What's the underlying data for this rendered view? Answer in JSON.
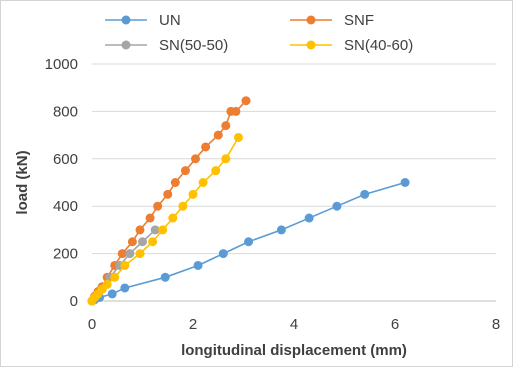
{
  "chart_data": {
    "type": "scatter",
    "xlabel": "longitudinal displacement (mm)",
    "ylabel": "load (kN)",
    "xlim": [
      0,
      8
    ],
    "ylim": [
      0,
      1000
    ],
    "x_ticks": [
      0,
      2,
      4,
      6,
      8
    ],
    "y_ticks": [
      0,
      200,
      400,
      600,
      800,
      1000
    ],
    "grid": "horizontal",
    "legend": "top",
    "series": [
      {
        "name": "UN",
        "color": "#5B9BD5",
        "x": [
          0,
          0.05,
          0.15,
          0.4,
          0.65,
          1.45,
          2.1,
          2.6,
          3.1,
          3.75,
          4.3,
          4.85,
          5.4,
          6.2
        ],
        "y": [
          0,
          5,
          15,
          30,
          55,
          100,
          150,
          200,
          250,
          300,
          350,
          400,
          450,
          500
        ]
      },
      {
        "name": "SNF",
        "color": "#ED7D31",
        "x": [
          0,
          0.05,
          0.12,
          0.2,
          0.3,
          0.45,
          0.6,
          0.8,
          0.95,
          1.15,
          1.3,
          1.5,
          1.65,
          1.85,
          2.05,
          2.25,
          2.5,
          2.65,
          2.75,
          2.85,
          3.05
        ],
        "y": [
          0,
          20,
          40,
          60,
          100,
          150,
          200,
          250,
          300,
          350,
          400,
          450,
          500,
          550,
          600,
          650,
          700,
          740,
          800,
          800,
          845
        ]
      },
      {
        "name": "SN(50-50)",
        "color": "#A5A5A5",
        "x": [
          0,
          0.08,
          0.2,
          0.35,
          0.55,
          0.75,
          1.0,
          1.25
        ],
        "y": [
          0,
          20,
          50,
          100,
          150,
          200,
          250,
          300
        ]
      },
      {
        "name": "SN(40-60)",
        "color": "#FFC000",
        "x": [
          0,
          0.05,
          0.12,
          0.2,
          0.3,
          0.45,
          0.65,
          0.95,
          1.2,
          1.4,
          1.6,
          1.8,
          2.0,
          2.2,
          2.45,
          2.65,
          2.9
        ],
        "y": [
          0,
          15,
          30,
          50,
          70,
          100,
          150,
          200,
          250,
          300,
          350,
          400,
          450,
          500,
          550,
          600,
          690
        ]
      }
    ]
  }
}
